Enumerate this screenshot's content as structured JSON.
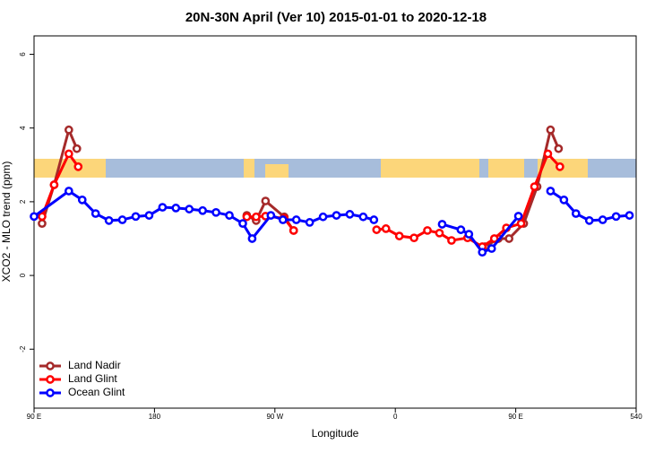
{
  "chart_data": {
    "type": "line",
    "title": "20N-30N April (Ver 10)   2015-01-01 to 2020-12-18",
    "x_label": "Longitude",
    "y_label": "XCO2 - MLO trend (ppm)",
    "xlim": [
      90,
      540
    ],
    "ylim": [
      -3.6,
      6.5
    ],
    "xticks": [
      {
        "value": 90,
        "label": "90 E"
      },
      180,
      {
        "value": 270,
        "label": "90 W"
      },
      {
        "value": 360,
        "label": "0"
      },
      {
        "value": 450,
        "label": "90 E"
      },
      540
    ],
    "yticks": [
      -2,
      0,
      2,
      4,
      6
    ],
    "legend": "bottom-left",
    "series": [
      {
        "name": "Land Nadir",
        "color": "#a52a2a",
        "x": [
          96,
          105,
          116,
          122,
          180,
          249,
          256,
          263,
          277,
          284,
          360,
          427,
          437,
          445,
          456,
          466,
          476,
          482
        ],
        "values": [
          1.41,
          2.46,
          3.95,
          3.44,
          null,
          1.63,
          1.49,
          2.02,
          1.59,
          1.22,
          null,
          0.78,
          1.0,
          1.0,
          1.41,
          2.41,
          3.95,
          3.44
        ]
      },
      {
        "name": "Land Glint",
        "color": "#ff0000",
        "x": [
          96,
          105,
          116,
          123,
          180,
          249,
          256,
          263,
          277,
          284,
          320,
          346,
          353,
          363,
          374,
          384,
          393,
          402,
          414,
          425,
          434,
          443,
          454,
          464,
          474,
          483
        ],
        "values": [
          1.6,
          2.46,
          3.3,
          2.95,
          null,
          1.59,
          1.59,
          1.61,
          1.55,
          1.22,
          null,
          1.24,
          1.27,
          1.07,
          1.02,
          1.22,
          1.15,
          0.95,
          1.02,
          0.78,
          1.0,
          1.29,
          1.41,
          2.41,
          3.3,
          2.95
        ]
      },
      {
        "name": "Ocean Glint",
        "color": "#0000ff",
        "x": [
          90,
          116,
          126,
          136,
          146,
          156,
          166,
          176,
          186,
          196,
          206,
          216,
          226,
          236,
          246,
          253,
          267,
          276,
          286,
          296,
          306,
          316,
          326,
          336,
          344,
          370,
          395,
          409,
          415,
          425,
          432,
          452,
          465,
          476,
          486,
          495,
          505,
          515,
          525,
          535
        ],
        "values": [
          1.6,
          2.29,
          2.05,
          1.68,
          1.49,
          1.51,
          1.6,
          1.63,
          1.85,
          1.83,
          1.8,
          1.76,
          1.71,
          1.63,
          1.41,
          1.0,
          1.63,
          1.51,
          1.51,
          1.44,
          1.59,
          1.63,
          1.66,
          1.59,
          1.51,
          null,
          1.39,
          1.24,
          1.12,
          0.63,
          0.73,
          1.61,
          null,
          2.29,
          2.05,
          1.68,
          1.49,
          1.51,
          1.6,
          1.63
        ]
      }
    ]
  }
}
